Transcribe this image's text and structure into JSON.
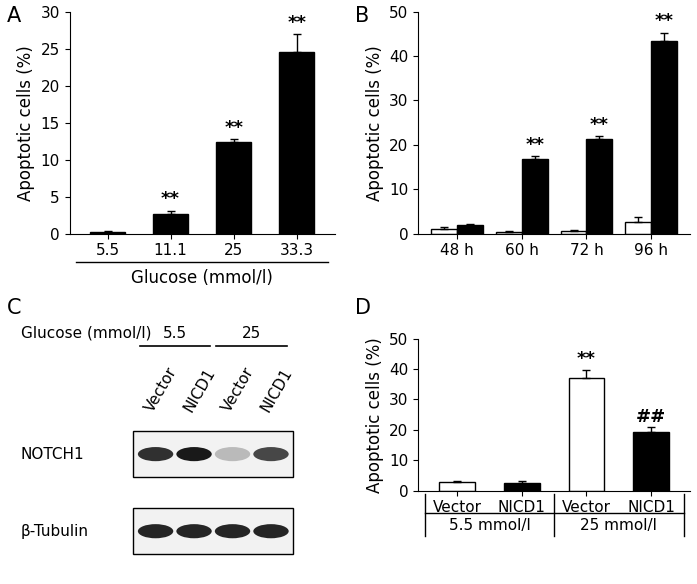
{
  "chart_data": [
    {
      "type": "bar",
      "panel_label": "A",
      "categories": [
        "5.5",
        "11.1",
        "25",
        "33.3"
      ],
      "values": [
        0.2,
        2.7,
        12.4,
        24.5
      ],
      "errors": [
        0.1,
        0.4,
        0.4,
        2.5
      ],
      "marks": [
        null,
        "**",
        "**",
        "**"
      ],
      "color": "#000000",
      "xlabel": "Glucose (mmol/l)",
      "ylabel": "Apoptotic cells (%)",
      "ylim": [
        0,
        30
      ],
      "yticks": [
        0,
        5,
        10,
        15,
        20,
        25,
        30
      ]
    },
    {
      "type": "bar",
      "panel_label": "B",
      "categories": [
        "48 h",
        "60 h",
        "72 h",
        "96 h"
      ],
      "series": [
        {
          "color": "#ffffff",
          "values": [
            1.0,
            0.3,
            0.5,
            2.7
          ],
          "errors": [
            0.4,
            0.2,
            0.2,
            1.0
          ]
        },
        {
          "color": "#000000",
          "values": [
            2.0,
            16.8,
            21.3,
            43.3
          ],
          "errors": [
            0.2,
            0.7,
            0.6,
            2.0
          ],
          "marks": [
            null,
            "**",
            "**",
            "**"
          ]
        }
      ],
      "ylabel": "Apoptotic cells (%)",
      "ylim": [
        0,
        50
      ],
      "yticks": [
        0,
        10,
        20,
        30,
        40,
        50
      ]
    },
    {
      "type": "bar",
      "panel_label": "D",
      "categories": [
        "Vector",
        "NICD1",
        "Vector",
        "NICD1"
      ],
      "values": [
        2.7,
        2.4,
        37.2,
        19.4
      ],
      "errors": [
        0.6,
        0.6,
        2.5,
        1.4
      ],
      "marks": [
        null,
        null,
        "**",
        "##"
      ],
      "colors": [
        "#ffffff",
        "#000000",
        "#ffffff",
        "#000000"
      ],
      "groups": [
        {
          "label": "5.5 mmol/l",
          "count": 2
        },
        {
          "label": "25 mmol/l",
          "count": 2
        }
      ],
      "ylabel": "Apoptotic cells (%)",
      "ylim": [
        0,
        50
      ],
      "yticks": [
        0,
        10,
        20,
        30,
        40,
        50
      ]
    }
  ],
  "blot": {
    "panel_label": "C",
    "header": "Glucose (mmol/l)",
    "conditions": [
      {
        "label": "5.5",
        "count": 2
      },
      {
        "label": "25",
        "count": 2
      }
    ],
    "lanes": [
      "Vector",
      "NICD1",
      "Vector",
      "NICD1"
    ],
    "bands": [
      {
        "label": "NOTCH1",
        "intensity": [
          0.9,
          1.0,
          0.3,
          0.8
        ]
      },
      {
        "label": "β-Tubulin",
        "intensity": [
          0.95,
          0.95,
          0.95,
          0.95
        ]
      }
    ]
  }
}
